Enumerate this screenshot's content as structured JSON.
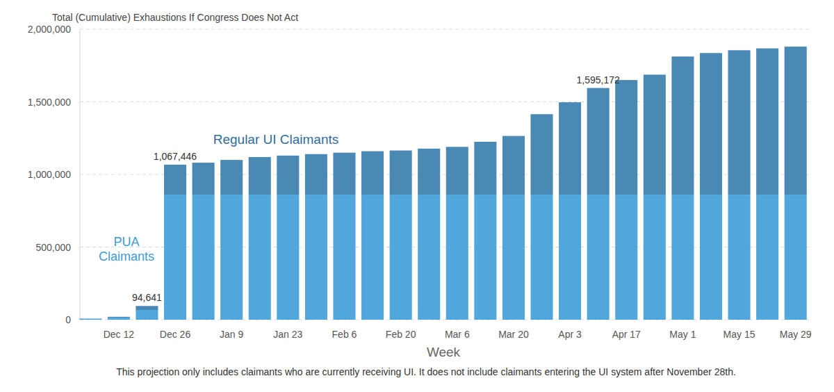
{
  "chart_data": {
    "type": "bar",
    "stacked": true,
    "grid": true,
    "title": "Total (Cumulative) Exhaustions If Congress Does Not Act",
    "x_label": "Week",
    "footnote": "This projection only includes claimants who are currently receiving UI. It does not include claimants entering the UI system after November 28th.",
    "categories": [
      null,
      "Dec 12",
      null,
      "Dec 26",
      null,
      "Jan 9",
      null,
      "Jan 23",
      null,
      "Feb 6",
      null,
      "Feb 20",
      null,
      "Mar 6",
      null,
      "Mar 20",
      null,
      "Apr 3",
      null,
      "Apr 17",
      null,
      "May 1",
      null,
      "May 15",
      null,
      "May 29"
    ],
    "series": [
      {
        "name": "PUA Claimants",
        "color": "#51a7db",
        "values": [
          6000,
          14000,
          67000,
          861000,
          861000,
          861000,
          861000,
          861000,
          861000,
          861000,
          861000,
          861000,
          861000,
          861000,
          861000,
          861000,
          861000,
          861000,
          861000,
          861000,
          861000,
          861000,
          861000,
          861000,
          861000,
          861000
        ]
      },
      {
        "name": "Regular UI Claimants",
        "color": "#4b89b5",
        "values": [
          2000,
          6000,
          27641,
          206446,
          220000,
          239000,
          259000,
          269000,
          279000,
          289000,
          299000,
          304000,
          317000,
          329000,
          364000,
          404000,
          554000,
          636000,
          734172,
          789000,
          826000,
          951000,
          975000,
          994000,
          1007000,
          1019000
        ]
      }
    ],
    "ylim": [
      0,
      2000000
    ],
    "yticks": [
      {
        "value": 0,
        "label": "0"
      },
      {
        "value": 500000,
        "label": "500,000"
      },
      {
        "value": 1000000,
        "label": "1,000,000"
      },
      {
        "value": 1500000,
        "label": "1,500,000"
      },
      {
        "value": 2000000,
        "label": "2,000,000"
      }
    ],
    "annotations": [
      {
        "label": "94,641",
        "value": 94641,
        "index": 2
      },
      {
        "label": "1,067,446",
        "value": 1067446,
        "index": 3
      },
      {
        "label": "1,595,172",
        "value": 1595172,
        "index": 18
      }
    ]
  }
}
